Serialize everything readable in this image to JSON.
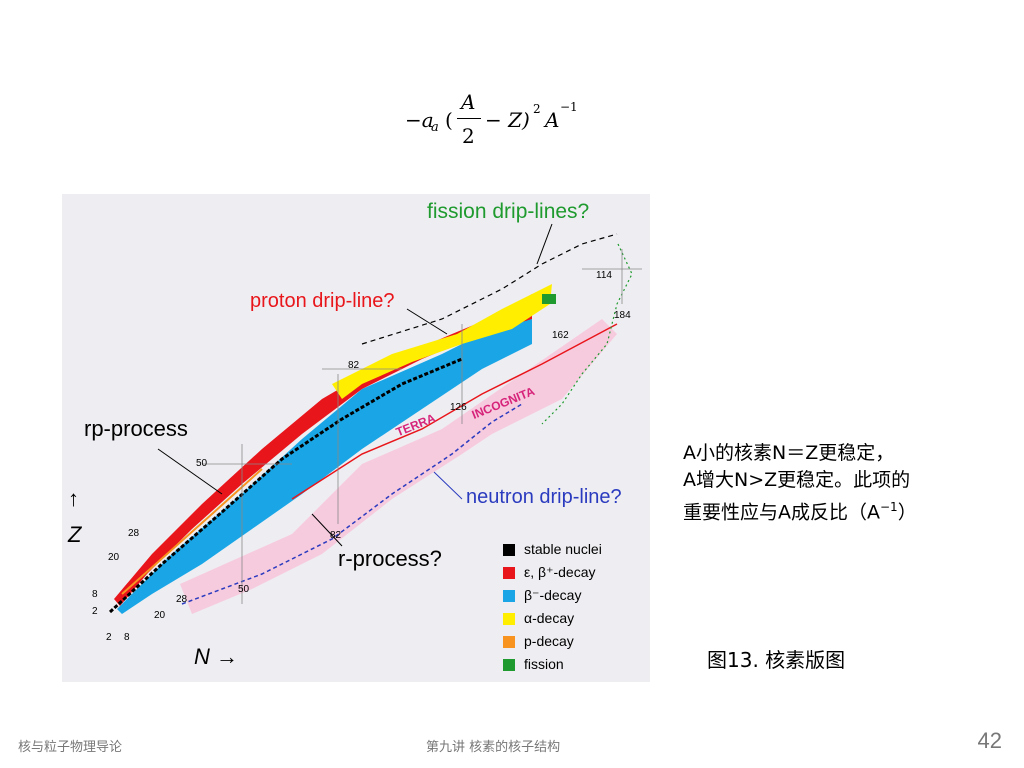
{
  "formula": {
    "minus_a": "−a",
    "sub_a": "a",
    "paren_open": "(",
    "numerator": "A",
    "denominator": "2",
    "minus_Z": "− Z)",
    "exp2": "2",
    "A": "A",
    "exp_neg1": "−1"
  },
  "figure": {
    "labels": {
      "fission": "fission drip-lines?",
      "proton": "proton drip-line?",
      "rp_process": "rp-process",
      "neutron": "neutron drip-line?",
      "r_process": "r-process?",
      "terra": "TERRA",
      "incognita": "INCOGNITA",
      "z_axis": "Z",
      "n_axis": "N →",
      "z_arrow": "↑"
    },
    "magic_numbers": {
      "z_2": "2",
      "z_8": "8",
      "z_20": "20",
      "z_28": "28",
      "z_50": "50",
      "z_82": "82",
      "z_114": "114",
      "n_2": "2",
      "n_8": "8",
      "n_20": "20",
      "n_28": "28",
      "n_50": "50",
      "n_82": "82",
      "n_126": "126",
      "n_162": "162",
      "n_184": "184"
    },
    "legend": [
      {
        "label": "stable nuclei",
        "color": "#000000"
      },
      {
        "label": "ε, β⁺-decay",
        "color": "#e8161b"
      },
      {
        "label": "β⁻-decay",
        "color": "#1aa6e6"
      },
      {
        "label": "α-decay",
        "color": "#ffee00"
      },
      {
        "label": "p-decay",
        "color": "#f7931e"
      },
      {
        "label": "fission",
        "color": "#1f9a2e"
      }
    ]
  },
  "side_text": {
    "line1": "A小的核素N＝Z更稳定，",
    "line2": "A增大N>Z更稳定。此项的",
    "line3": "重要性应与A成反比（A",
    "line3_sup": "−1",
    "line3_end": "）"
  },
  "caption": "图13. 核素版图",
  "footer": {
    "left": "核与粒子物理导论",
    "center": "第九讲 核素的核子结构",
    "page": "42"
  }
}
